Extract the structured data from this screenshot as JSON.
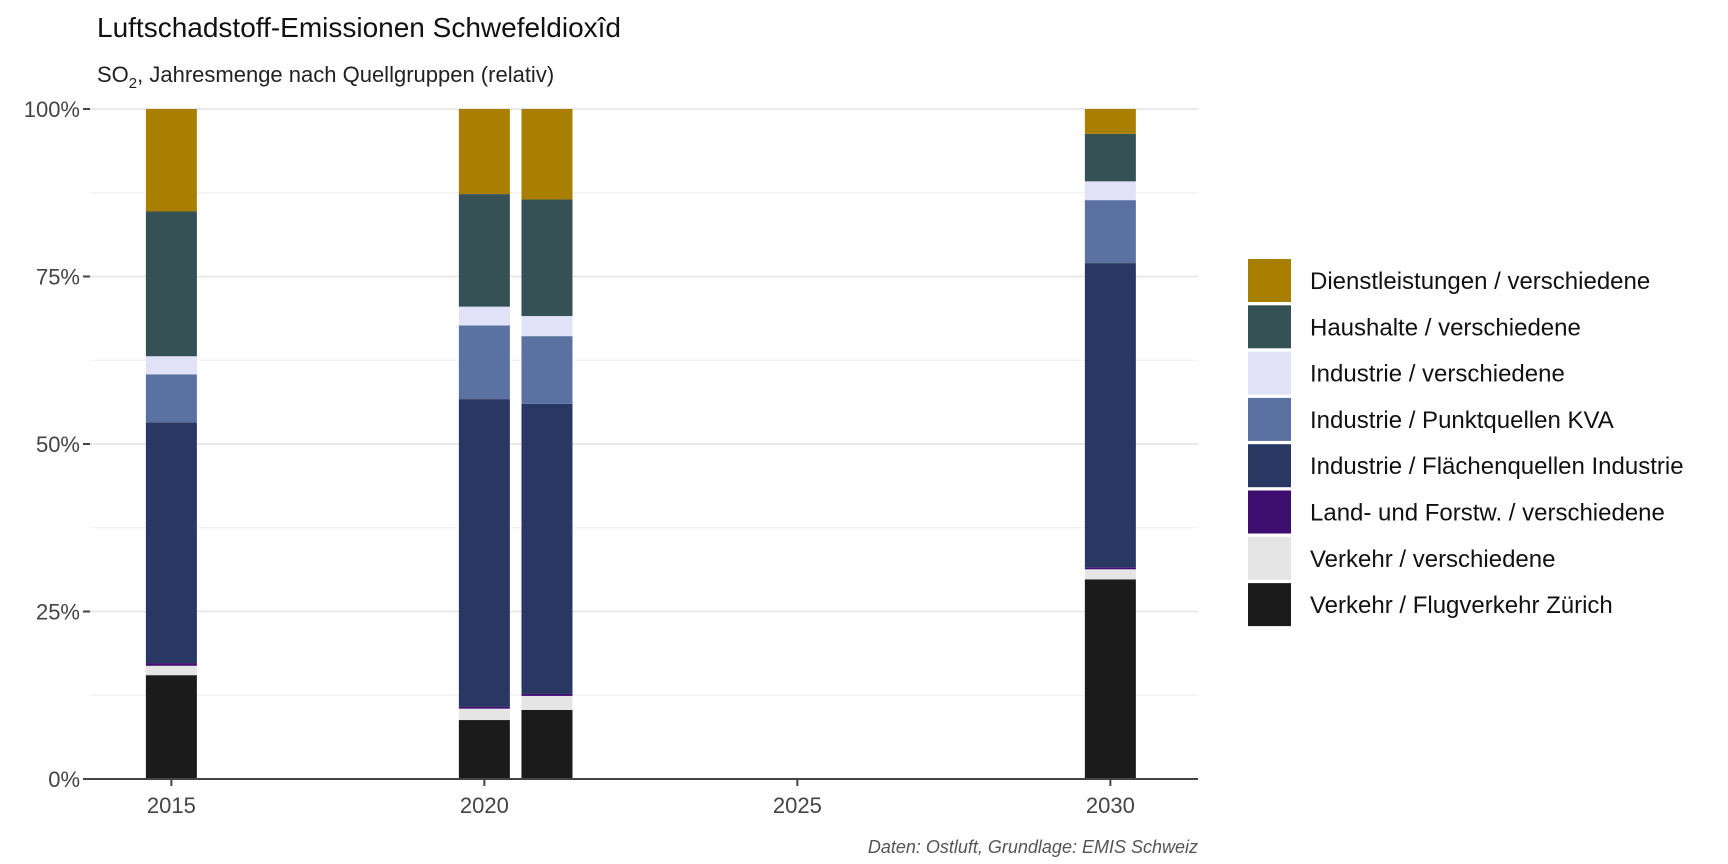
{
  "title": "Luftschadstoff-Emissionen Schwefeldioxîd",
  "subtitle": {
    "prefix": "SO",
    "sub": "2",
    "rest": ", Jahresmenge nach Quellgruppen (relativ)"
  },
  "caption": "Daten: Ostluft, Grundlage: EMIS Schweiz",
  "chart_data": {
    "type": "bar",
    "stacked": true,
    "normalized": true,
    "xlabel": "",
    "ylabel": "",
    "xlim": [
      2013.7,
      2031.4
    ],
    "ylim": [
      0,
      100
    ],
    "x_ticks": [
      2015,
      2020,
      2025,
      2030
    ],
    "y_ticks": [
      0,
      25,
      50,
      75,
      100
    ],
    "y_tick_labels": [
      "0%",
      "25%",
      "50%",
      "75%",
      "100%"
    ],
    "grid": true,
    "legend_position": "right",
    "x": [
      2015,
      2020,
      2021,
      2030
    ],
    "series": [
      {
        "name": "Verkehr / Flugverkehr Zürich",
        "color": "#1b1b1b",
        "values": [
          15.5,
          8.8,
          10.3,
          29.8
        ]
      },
      {
        "name": "Verkehr / verschiedene",
        "color": "#e5e5e5",
        "values": [
          1.4,
          1.7,
          2.1,
          1.5
        ]
      },
      {
        "name": "Land- und Forstw. / verschiedene",
        "color": "#3f0e71",
        "values": [
          0.4,
          0.3,
          0.3,
          0.3
        ]
      },
      {
        "name": "Industrie / Flächenquellen Industrie",
        "color": "#293862",
        "values": [
          35.9,
          45.9,
          43.3,
          45.4
        ]
      },
      {
        "name": "Industrie / Punktquellen KVA",
        "color": "#5b71a2",
        "values": [
          7.2,
          11.0,
          10.1,
          9.4
        ]
      },
      {
        "name": "Industrie / verschiedene",
        "color": "#e1e1f8",
        "values": [
          2.7,
          2.8,
          3.0,
          2.8
        ]
      },
      {
        "name": "Haushalte / verschiedene",
        "color": "#355156",
        "values": [
          21.6,
          16.8,
          17.4,
          7.1
        ]
      },
      {
        "name": "Dienstleistungen / verschiedene",
        "color": "#a87f00",
        "values": [
          15.3,
          12.7,
          13.5,
          3.7
        ]
      }
    ]
  }
}
